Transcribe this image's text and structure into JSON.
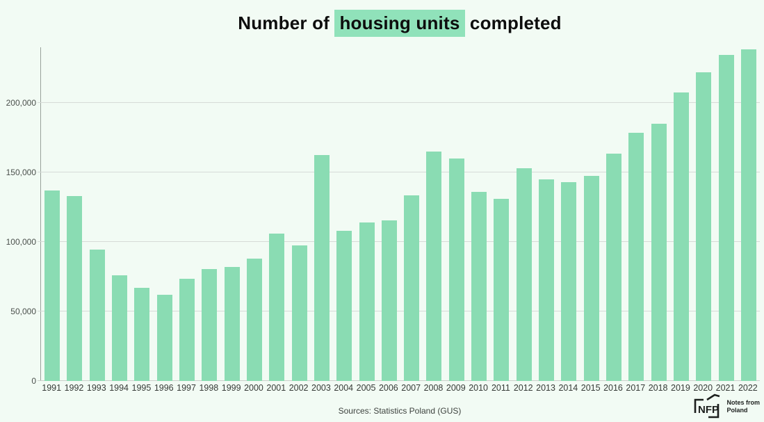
{
  "title": {
    "prefix": "Number of ",
    "highlight": "housing units",
    "suffix": " completed"
  },
  "footer": {
    "sources": "Sources: Statistics Poland (GUS)",
    "logo": {
      "abbr": "NFP",
      "line1": "Notes from",
      "line2": "Poland"
    }
  },
  "colors": {
    "background": "#f2fbf4",
    "bar": "#8adcb3",
    "title_highlight": "#90e2ba",
    "gridline": "#d6dbd7",
    "axis_line": "#98a09a",
    "logo_ink": "#1c1f1d"
  },
  "chart_data": {
    "type": "bar",
    "title": "Number of housing units completed",
    "xlabel": "",
    "ylabel": "",
    "categories": [
      "1991",
      "1992",
      "1993",
      "1994",
      "1995",
      "1996",
      "1997",
      "1998",
      "1999",
      "2000",
      "2001",
      "2002",
      "2003",
      "2004",
      "2005",
      "2006",
      "2007",
      "2008",
      "2009",
      "2010",
      "2011",
      "2012",
      "2013",
      "2014",
      "2015",
      "2016",
      "2017",
      "2018",
      "2019",
      "2020",
      "2021",
      "2022"
    ],
    "values": [
      136800,
      133000,
      94400,
      76100,
      67100,
      62100,
      73700,
      80600,
      82000,
      87800,
      106000,
      97600,
      162700,
      108100,
      114100,
      115400,
      133700,
      165200,
      160000,
      135800,
      131000,
      152900,
      145100,
      143200,
      147700,
      163400,
      178500,
      184800,
      207500,
      222000,
      234700,
      238600
    ],
    "ylim": [
      0,
      240000
    ],
    "yticks": [
      0,
      50000,
      100000,
      150000,
      200000
    ],
    "ytick_labels": [
      "0",
      "50,000",
      "100,000",
      "150,000",
      "200,000"
    ],
    "grid": true,
    "legend": false,
    "bar_color": "#8adcb3"
  }
}
